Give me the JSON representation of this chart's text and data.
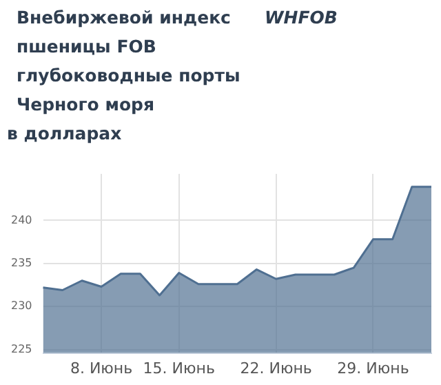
{
  "chart_data": {
    "type": "area",
    "title": "Внебиржевой индекс пшеницы FOB глубоководные порты Черного моря",
    "subtitle": "WHFOB",
    "ylabel": "в долларах",
    "categories": [
      null,
      null,
      null,
      "8. Июнь",
      null,
      null,
      null,
      "15. Июнь",
      null,
      null,
      null,
      null,
      "22. Июнь",
      null,
      null,
      null,
      null,
      "29. Июнь",
      null,
      null,
      null
    ],
    "series": [
      {
        "color": "#4f6f91",
        "values": [
          232.2,
          231.9,
          233.0,
          232.3,
          233.8,
          233.8,
          231.3,
          233.9,
          232.6,
          232.6,
          232.6,
          234.3,
          233.2,
          233.7,
          233.7,
          233.7,
          234.5,
          237.8,
          237.8,
          243.9,
          243.9
        ]
      }
    ],
    "ylim": [
      224.6,
      245.4
    ],
    "yticks": [
      225,
      230,
      235,
      240
    ],
    "grid": true,
    "legend": false,
    "marker": "none"
  }
}
